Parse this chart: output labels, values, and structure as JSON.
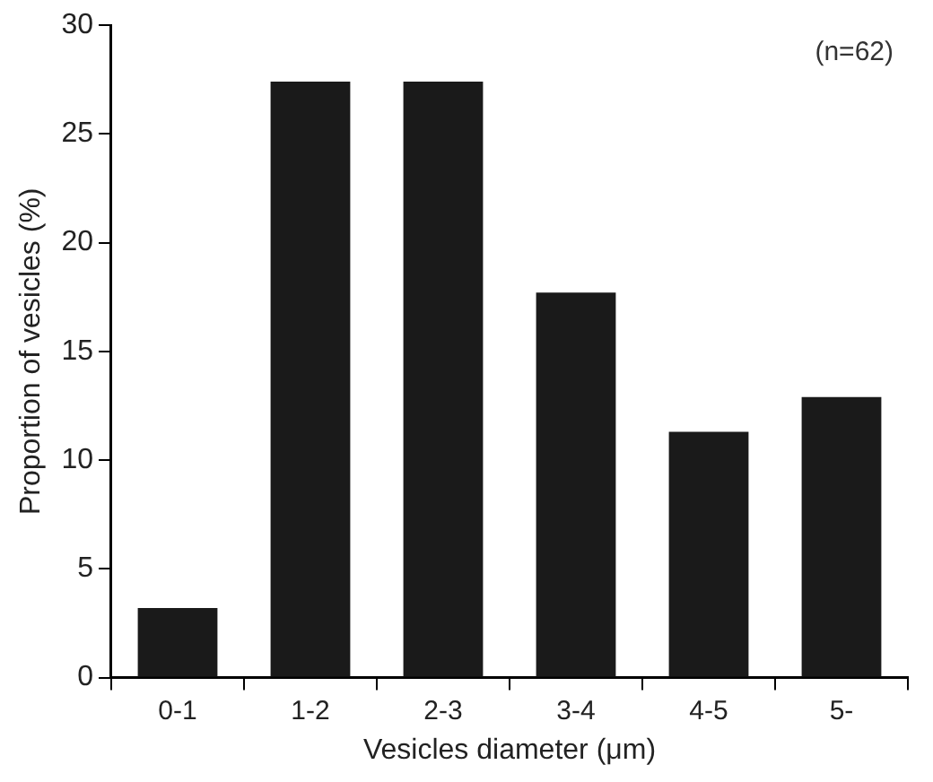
{
  "chart_data": {
    "type": "bar",
    "xlabel": "Vesicles diameter (μm)",
    "ylabel": "Proportion of vesicles (%)",
    "categories": [
      "0-1",
      "1-2",
      "2-3",
      "3-4",
      "4-5",
      "5-"
    ],
    "values": [
      3.2,
      27.4,
      27.4,
      17.7,
      11.3,
      12.9
    ],
    "color": "#1a1a1a",
    "ylim": [
      0,
      30
    ],
    "yticks": [
      0,
      5,
      10,
      15,
      20,
      25,
      30
    ],
    "grid": false,
    "legend": false,
    "annotations": [
      "(n=62)"
    ]
  }
}
